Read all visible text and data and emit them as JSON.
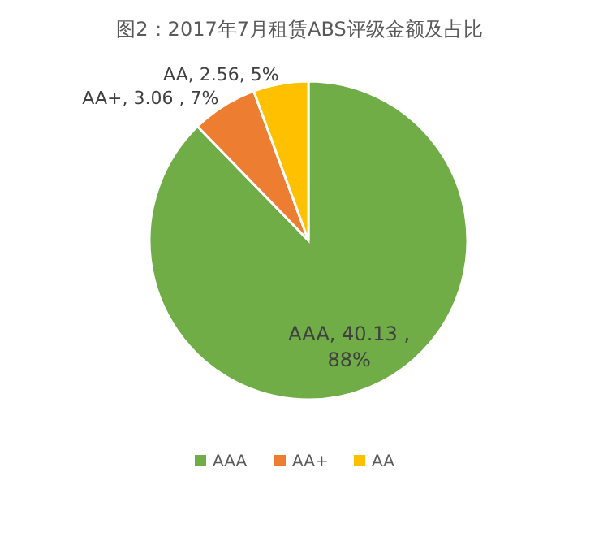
{
  "chart_data": {
    "type": "pie",
    "title": "图2：2017年7月租赁ABS评级金额及占比",
    "categories": [
      "AAA",
      "AA+",
      "AA"
    ],
    "values": [
      40.13,
      3.06,
      2.56
    ],
    "value_labels": [
      "AAA, 40.13 , 88%",
      "AA+, 3.06 , 7%",
      "AA, 2.56, 5%"
    ],
    "colors": [
      "#70ad47",
      "#ed7d31",
      "#ffc000"
    ],
    "legend": "bottom"
  }
}
